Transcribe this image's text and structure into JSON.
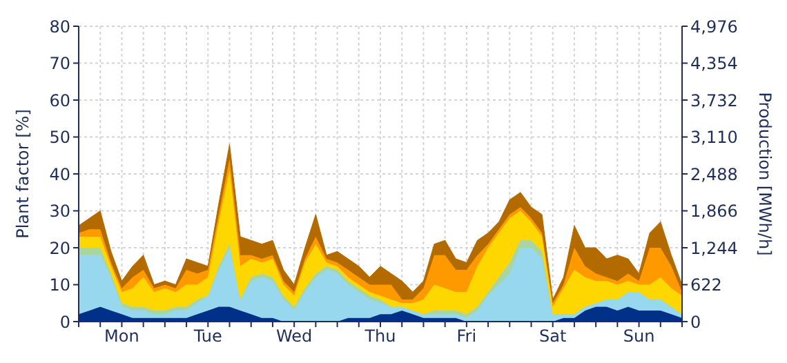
{
  "chart_data": {
    "type": "area",
    "stacked": true,
    "ylabel": "Plant factor [%]",
    "y2label": "Production [MWh/h]",
    "categories": [
      null,
      null,
      null,
      null,
      "Mon",
      null,
      null,
      null,
      null,
      null,
      null,
      null,
      "Tue",
      null,
      null,
      null,
      null,
      null,
      null,
      null,
      "Wed",
      null,
      null,
      null,
      null,
      null,
      null,
      null,
      "Thu",
      null,
      null,
      null,
      null,
      null,
      null,
      null,
      "Fri",
      null,
      null,
      null,
      null,
      null,
      null,
      null,
      "Sat",
      null,
      null,
      null,
      null,
      null,
      null,
      null,
      "Sun",
      null,
      null,
      null,
      null
    ],
    "series": [
      {
        "color": "#003087",
        "values": [
          2,
          3,
          4,
          3,
          2,
          1,
          1,
          1,
          1,
          1,
          1,
          2,
          3,
          4,
          4,
          3,
          2,
          1,
          1,
          0,
          0,
          0,
          0,
          0,
          0,
          1,
          1,
          1,
          2,
          2,
          3,
          2,
          1,
          1,
          1,
          1,
          0,
          0,
          0,
          0,
          0,
          0,
          0,
          0,
          0,
          1,
          1,
          3,
          4,
          4,
          3,
          4,
          3,
          3,
          3,
          2,
          1
        ]
      },
      {
        "color": "#97d8ee",
        "values": [
          16,
          15,
          14,
          9,
          2,
          2,
          2,
          1,
          1,
          2,
          2,
          3,
          4,
          10,
          16,
          3,
          9,
          11,
          10,
          6,
          3,
          8,
          12,
          14,
          13,
          9,
          7,
          5,
          3,
          2,
          1,
          1,
          1,
          1,
          1,
          1,
          1,
          3,
          7,
          10,
          13,
          20,
          20,
          17,
          2,
          1,
          1,
          1,
          1,
          2,
          3,
          4,
          5,
          3,
          3,
          2,
          1
        ]
      },
      {
        "color": "#a8d5a2",
        "values": [
          2,
          2,
          2,
          1,
          1,
          1,
          1,
          1,
          1,
          1,
          1,
          1,
          0,
          1,
          1,
          0,
          1,
          1,
          1,
          1,
          1,
          1,
          1,
          1,
          1,
          1,
          1,
          1,
          1,
          0,
          0,
          0,
          0,
          1,
          1,
          1,
          1,
          1,
          1,
          2,
          3,
          2,
          2,
          2,
          0,
          0,
          0,
          0,
          0,
          0,
          0,
          0,
          0,
          0,
          0,
          0,
          0
        ]
      },
      {
        "color": "#ffd700",
        "values": [
          3,
          3,
          3,
          2,
          3,
          5,
          8,
          5,
          6,
          4,
          6,
          4,
          5,
          12,
          20,
          9,
          5,
          3,
          5,
          3,
          3,
          7,
          8,
          1,
          1,
          1,
          1,
          1,
          1,
          2,
          1,
          2,
          4,
          7,
          6,
          5,
          6,
          11,
          12,
          12,
          12,
          8,
          5,
          4,
          2,
          7,
          12,
          8,
          6,
          5,
          4,
          3,
          2,
          4,
          6,
          5,
          5
        ]
      },
      {
        "color": "#ff9900",
        "values": [
          1,
          2,
          2,
          1,
          1,
          3,
          2,
          1,
          1,
          1,
          4,
          3,
          2,
          2,
          3,
          3,
          1,
          1,
          1,
          1,
          1,
          1,
          2,
          1,
          1,
          2,
          2,
          2,
          3,
          4,
          1,
          1,
          3,
          8,
          9,
          6,
          6,
          3,
          1,
          1,
          1,
          1,
          1,
          1,
          1,
          1,
          6,
          3,
          2,
          1,
          1,
          2,
          1,
          10,
          8,
          6,
          1
        ]
      },
      {
        "color": "#b36b00",
        "values": [
          2,
          3,
          5,
          3,
          2,
          3,
          4,
          1,
          1,
          1,
          3,
          3,
          1,
          3,
          4,
          5,
          4,
          4,
          4,
          3,
          2,
          3,
          6,
          1,
          3,
          3,
          3,
          2,
          5,
          3,
          5,
          2,
          2,
          3,
          4,
          3,
          2,
          4,
          3,
          2,
          4,
          4,
          3,
          5,
          1,
          2,
          6,
          5,
          7,
          5,
          7,
          4,
          2,
          4,
          7,
          3,
          2
        ]
      }
    ],
    "ylim": [
      0,
      80
    ],
    "yticks": [
      0,
      10,
      20,
      30,
      40,
      50,
      60,
      70,
      80
    ],
    "y2lim": [
      0,
      4976
    ],
    "y2ticks": [
      0,
      622,
      {
        "value": 1244,
        "label": "1,244"
      },
      {
        "value": 1866,
        "label": "1,866"
      },
      {
        "value": 2488,
        "label": "2,488"
      },
      {
        "value": 3110,
        "label": "3,110"
      },
      {
        "value": 3732,
        "label": "3,732"
      },
      {
        "value": 4354,
        "label": "4,354"
      },
      {
        "value": 4976,
        "label": "4,976"
      }
    ],
    "grid": true,
    "legend": false
  }
}
